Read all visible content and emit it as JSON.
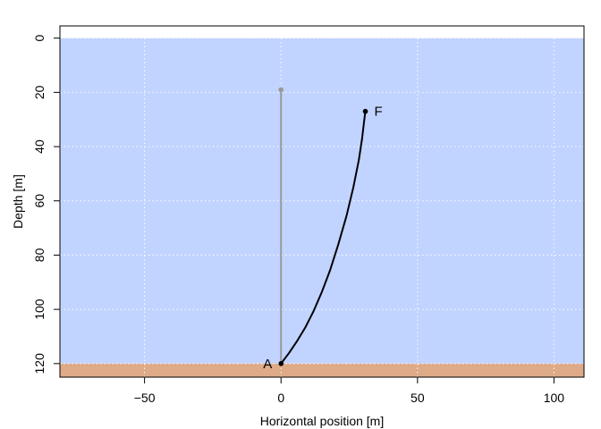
{
  "chart_data": {
    "type": "line",
    "title": "",
    "xlabel": "Horizontal position [m]",
    "ylabel": "Depth [m]",
    "xlim": [
      -81,
      111
    ],
    "ylim": [
      125,
      -4.5
    ],
    "y_reversed": true,
    "x_ticks": [
      -50,
      0,
      50,
      100
    ],
    "y_ticks": [
      0,
      20,
      40,
      60,
      80,
      100,
      120
    ],
    "grid": true,
    "grid_style": "dotted",
    "water": {
      "surface_depth": 0,
      "seabed_depth": 120,
      "color": "#c1d3ff"
    },
    "seabed": {
      "depth": 120,
      "color": "#deaa87"
    },
    "series": [
      {
        "role": "vertical-reference",
        "color": "#999999",
        "points": [
          [
            0,
            120
          ],
          [
            0,
            19
          ]
        ],
        "end_marker": true
      },
      {
        "role": "deflected-line",
        "color": "#000000",
        "points": [
          [
            0,
            120
          ],
          [
            3,
            116
          ],
          [
            6,
            111.5
          ],
          [
            9,
            106.5
          ],
          [
            12,
            100.5
          ],
          [
            15,
            93.5
          ],
          [
            18,
            85.5
          ],
          [
            21,
            76
          ],
          [
            24,
            65.5
          ],
          [
            26.5,
            55
          ],
          [
            28.5,
            45
          ],
          [
            29.7,
            37
          ],
          [
            30.4,
            31
          ],
          [
            30.9,
            27
          ]
        ],
        "end_marker": true
      }
    ],
    "annotations": [
      {
        "text": "A",
        "x": 0,
        "y": 120,
        "side": "left"
      },
      {
        "text": "F",
        "x": 30.9,
        "y": 27,
        "side": "right"
      }
    ]
  }
}
